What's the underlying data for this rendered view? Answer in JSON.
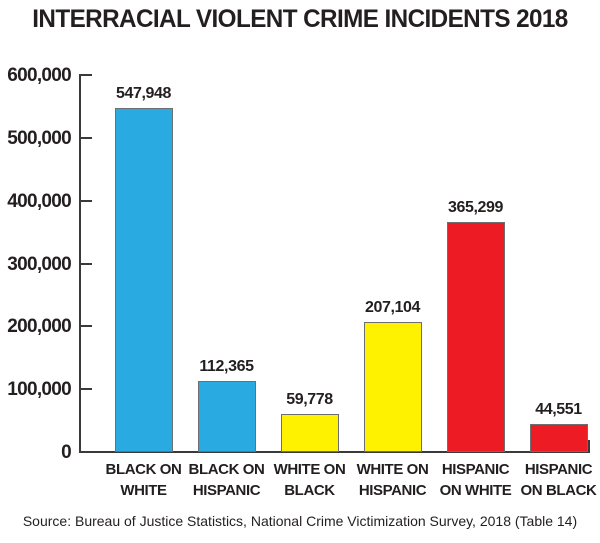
{
  "title": "INTERRACIAL VIOLENT CRIME INCIDENTS 2018",
  "source": "Source: Bureau of Justice Statistics, National Crime Victimization Survey, 2018 (Table 14)",
  "colors": {
    "blue": "#29ABE2",
    "yellow": "#FFF200",
    "red": "#ED1C24",
    "text": "#231F20",
    "axis": "#3a3a3c",
    "bar_outline": "#6d6e71"
  },
  "chart_data": {
    "type": "bar",
    "title": "INTERRACIAL VIOLENT CRIME INCIDENTS 2018",
    "categories": [
      "BLACK ON WHITE",
      "BLACK ON HISPANIC",
      "WHITE ON BLACK",
      "WHITE ON HISPANIC",
      "HISPANIC ON WHITE",
      "HISPANIC ON BLACK"
    ],
    "category_label_lines": [
      [
        "BLACK ON",
        "WHITE"
      ],
      [
        "BLACK ON",
        "HISPANIC"
      ],
      [
        "WHITE ON",
        "BLACK"
      ],
      [
        "WHITE ON",
        "HISPANIC"
      ],
      [
        "HISPANIC",
        "ON WHITE"
      ],
      [
        "HISPANIC",
        "ON BLACK"
      ]
    ],
    "values": [
      547948,
      112365,
      59778,
      207104,
      365299,
      44551
    ],
    "value_labels": [
      "547,948",
      "112,365",
      "59,778",
      "207,104",
      "365,299",
      "44,551"
    ],
    "bar_colors": [
      "#29ABE2",
      "#29ABE2",
      "#FFF200",
      "#FFF200",
      "#ED1C24",
      "#ED1C24"
    ],
    "xlabel": "",
    "ylabel": "",
    "ylim": [
      0,
      600000
    ],
    "y_tick_step": 100000,
    "y_tick_labels": [
      "0",
      "100,000",
      "200,000",
      "300,000",
      "400,000",
      "500,000",
      "600,000"
    ],
    "grid": false,
    "legend": "none",
    "source": "Source: Bureau of Justice Statistics, National Crime Victimization Survey, 2018 (Table 14)"
  }
}
